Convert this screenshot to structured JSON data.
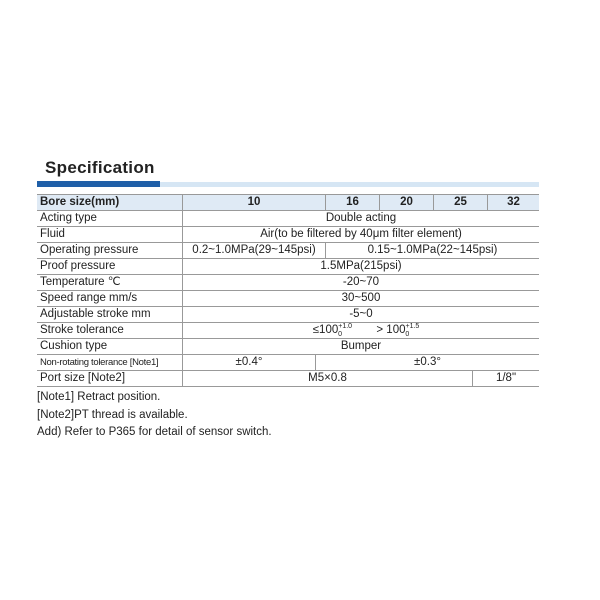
{
  "title": "Specification",
  "colors": {
    "accent_bar": "#1f5fa8",
    "light_bar": "#d6e6f4",
    "header_bg": "#dfeaf5"
  },
  "table": {
    "header": {
      "label": "Bore size(mm)",
      "sizes": [
        "10",
        "16",
        "20",
        "25",
        "32"
      ]
    },
    "acting_type": {
      "label": "Acting type",
      "value": "Double acting"
    },
    "fluid": {
      "label": "Fluid",
      "value": "Air(to be filtered by 40μm filter element)"
    },
    "operating_pressure": {
      "label": "Operating pressure",
      "value_10": "0.2~1.0MPa(29~145psi)",
      "value_16_32": "0.15~1.0MPa(22~145psi)"
    },
    "proof_pressure": {
      "label": "Proof pressure",
      "value": "1.5MPa(215psi)"
    },
    "temperature": {
      "label": "Temperature  ℃",
      "value": "-20~70"
    },
    "speed_range": {
      "label": "Speed range  mm/s",
      "value": "30~500"
    },
    "adjustable_stroke": {
      "label": "Adjustable stroke  mm",
      "value": "-5~0"
    },
    "stroke_tolerance": {
      "label": "Stroke tolerance",
      "value_a": "≤100",
      "tol_a_upper": "+1.0",
      "tol_a_lower": "0",
      "value_b": "> 100",
      "tol_b_upper": "+1.5",
      "tol_b_lower": "0"
    },
    "cushion_type": {
      "label": "Cushion type",
      "value": "Bumper"
    },
    "non_rotating": {
      "label": "Non-rotating tolerance [Note1]",
      "value_10": "±0.4°",
      "value_16_32": "±0.3°"
    },
    "port_size": {
      "label": "Port size [Note2]",
      "value_10_25": "M5×0.8",
      "value_32": "1/8\""
    }
  },
  "notes": [
    "[Note1] Retract position.",
    "[Note2]PT thread is available.",
    "Add) Refer to P365 for detail of sensor switch."
  ]
}
